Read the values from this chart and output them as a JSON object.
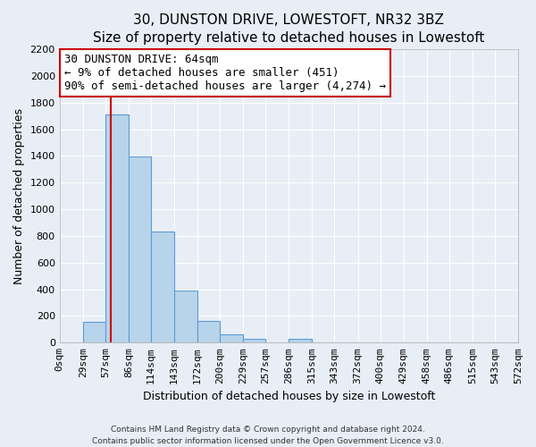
{
  "title": "30, DUNSTON DRIVE, LOWESTOFT, NR32 3BZ",
  "subtitle": "Size of property relative to detached houses in Lowestoft",
  "xlabel": "Distribution of detached houses by size in Lowestoft",
  "ylabel": "Number of detached properties",
  "bin_edges": [
    0,
    29,
    57,
    86,
    114,
    143,
    172,
    200,
    229,
    257,
    286,
    315,
    343,
    372,
    400,
    429,
    458,
    486,
    515,
    543,
    572
  ],
  "bin_heights": [
    0,
    155,
    1710,
    1395,
    830,
    390,
    165,
    60,
    30,
    0,
    30,
    0,
    0,
    0,
    0,
    0,
    0,
    0,
    0,
    0
  ],
  "tick_labels": [
    "0sqm",
    "29sqm",
    "57sqm",
    "86sqm",
    "114sqm",
    "143sqm",
    "172sqm",
    "200sqm",
    "229sqm",
    "257sqm",
    "286sqm",
    "315sqm",
    "343sqm",
    "372sqm",
    "400sqm",
    "429sqm",
    "458sqm",
    "486sqm",
    "515sqm",
    "543sqm",
    "572sqm"
  ],
  "property_size": 64,
  "bar_facecolor": "#b8d4ea",
  "bar_edgecolor": "#5b9bd5",
  "vline_color": "#cc0000",
  "vline_x": 64,
  "annotation_title": "30 DUNSTON DRIVE: 64sqm",
  "annotation_line1": "← 9% of detached houses are smaller (451)",
  "annotation_line2": "90% of semi-detached houses are larger (4,274) →",
  "annotation_box_color": "#ffffff",
  "annotation_box_edgecolor": "#cc0000",
  "ylim": [
    0,
    2200
  ],
  "yticks": [
    0,
    200,
    400,
    600,
    800,
    1000,
    1200,
    1400,
    1600,
    1800,
    2000,
    2200
  ],
  "footer1": "Contains HM Land Registry data © Crown copyright and database right 2024.",
  "footer2": "Contains public sector information licensed under the Open Government Licence v3.0.",
  "background_color": "#e8eef5",
  "plot_background_color": "#e8eef5",
  "grid_color": "#ffffff",
  "title_fontsize": 11,
  "subtitle_fontsize": 10,
  "ylabel_fontsize": 9,
  "xlabel_fontsize": 9,
  "tick_fontsize": 8,
  "annotation_fontsize": 9
}
